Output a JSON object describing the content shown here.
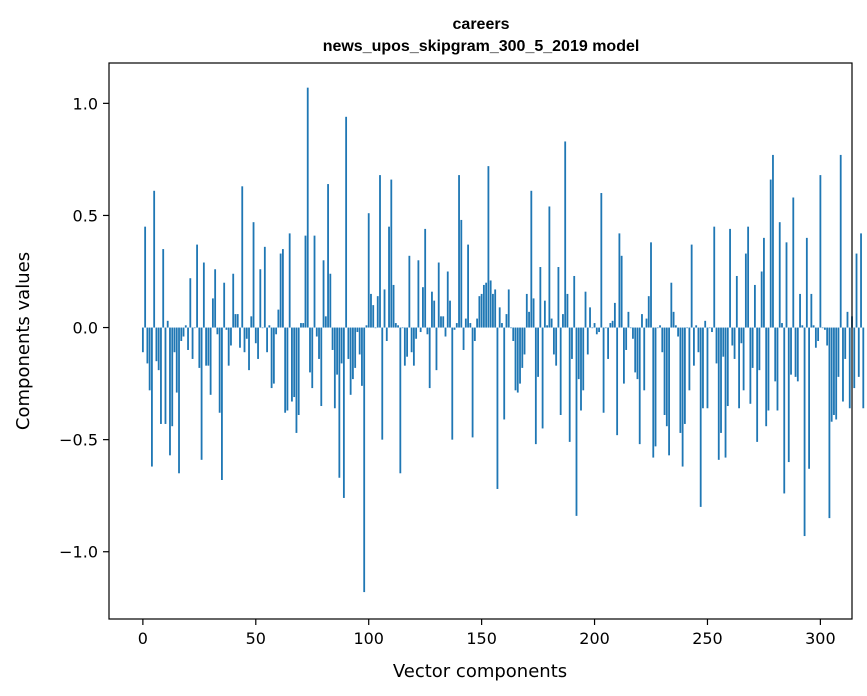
{
  "chart_data": {
    "type": "bar",
    "title": "careers",
    "subtitle": "news_upos_skipgram_300_5_2019 model",
    "xlabel": "Vector components",
    "ylabel": "Components values",
    "xlim": [
      -15,
      314
    ],
    "ylim": [
      -1.3,
      1.18
    ],
    "x_ticks": [
      0,
      50,
      100,
      150,
      200,
      250,
      300
    ],
    "x_tick_labels": [
      "0",
      "50",
      "100",
      "150",
      "200",
      "250",
      "300"
    ],
    "y_ticks": [
      1.0,
      0.5,
      0.0,
      -0.5,
      -1.0
    ],
    "y_tick_labels": [
      "1.0",
      "0.5",
      "0.0",
      "−0.5",
      "−1.0"
    ],
    "bar_color": "#1f77b4",
    "values": [
      -0.11,
      0.45,
      -0.16,
      -0.28,
      -0.62,
      0.61,
      -0.15,
      -0.19,
      -0.43,
      0.35,
      -0.43,
      0.03,
      -0.57,
      -0.44,
      -0.11,
      -0.29,
      -0.65,
      -0.06,
      -0.04,
      0.01,
      -0.1,
      0.22,
      -0.14,
      0.0,
      0.37,
      -0.18,
      -0.59,
      0.29,
      -0.17,
      -0.17,
      -0.3,
      0.13,
      0.26,
      -0.03,
      -0.38,
      -0.68,
      0.2,
      -0.01,
      -0.17,
      -0.08,
      0.24,
      0.06,
      0.06,
      -0.09,
      0.63,
      -0.11,
      -0.05,
      -0.19,
      0.05,
      0.47,
      -0.07,
      -0.14,
      0.26,
      0.0,
      0.36,
      -0.11,
      0.01,
      -0.27,
      -0.25,
      -0.03,
      0.08,
      0.33,
      0.35,
      -0.38,
      -0.37,
      0.42,
      -0.33,
      -0.31,
      -0.47,
      -0.39,
      0.02,
      0.02,
      0.41,
      1.07,
      -0.2,
      -0.27,
      0.41,
      -0.04,
      -0.14,
      -0.35,
      0.3,
      0.05,
      0.64,
      0.24,
      -0.1,
      -0.36,
      -0.21,
      -0.67,
      -0.16,
      -0.76,
      0.94,
      -0.14,
      -0.3,
      -0.23,
      -0.18,
      -0.02,
      -0.12,
      -0.26,
      -1.18,
      0.01,
      0.51,
      0.15,
      0.1,
      0.0,
      0.14,
      0.68,
      -0.5,
      0.17,
      -0.06,
      0.45,
      0.66,
      0.19,
      0.02,
      0.01,
      -0.65,
      0.0,
      -0.17,
      -0.13,
      0.32,
      -0.11,
      -0.17,
      -0.05,
      0.3,
      -0.02,
      0.18,
      0.44,
      -0.03,
      -0.27,
      0.16,
      0.12,
      -0.19,
      0.29,
      0.05,
      0.05,
      -0.04,
      0.25,
      0.12,
      -0.5,
      -0.01,
      0.02,
      0.68,
      0.48,
      -0.1,
      0.04,
      0.37,
      0.02,
      -0.49,
      -0.06,
      0.04,
      0.14,
      0.15,
      0.19,
      0.2,
      0.72,
      0.21,
      0.15,
      0.17,
      -0.72,
      0.09,
      0.02,
      -0.41,
      0.06,
      0.17,
      0.0,
      -0.06,
      -0.28,
      -0.29,
      -0.25,
      -0.18,
      -0.12,
      0.15,
      0.07,
      0.61,
      0.13,
      -0.52,
      -0.22,
      0.27,
      -0.45,
      0.12,
      0.01,
      0.54,
      0.04,
      -0.12,
      -0.17,
      0.27,
      -0.39,
      0.06,
      0.83,
      0.15,
      -0.51,
      -0.14,
      0.23,
      -0.84,
      -0.23,
      -0.37,
      -0.28,
      0.16,
      -0.12,
      0.09,
      0.0,
      0.02,
      -0.03,
      -0.02,
      0.6,
      -0.38,
      0.0,
      -0.14,
      0.02,
      0.03,
      0.11,
      -0.48,
      0.42,
      0.32,
      -0.25,
      -0.1,
      0.07,
      0.0,
      -0.05,
      -0.2,
      -0.23,
      -0.52,
      0.06,
      -0.28,
      0.04,
      0.14,
      0.38,
      -0.58,
      -0.53,
      0.0,
      0.01,
      -0.11,
      -0.39,
      -0.44,
      -0.57,
      0.2,
      0.07,
      0.01,
      -0.04,
      -0.47,
      -0.62,
      -0.43,
      0.0,
      -0.28,
      0.37,
      -0.17,
      0.01,
      -0.11,
      -0.8,
      -0.36,
      0.03,
      -0.36,
      0.0,
      -0.02,
      0.45,
      -0.16,
      -0.59,
      -0.47,
      -0.13,
      -0.58,
      -0.35,
      0.44,
      -0.08,
      -0.14,
      0.23,
      -0.36,
      -0.07,
      -0.28,
      0.33,
      0.45,
      -0.34,
      -0.18,
      0.19,
      -0.51,
      -0.19,
      0.25,
      0.4,
      -0.44,
      -0.37,
      0.66,
      0.77,
      -0.24,
      -0.37,
      0.47,
      0.02,
      -0.74,
      0.38,
      -0.6,
      -0.21,
      0.58,
      -0.22,
      -0.24,
      0.15,
      0.01,
      -0.93,
      0.4,
      -0.63,
      0.15,
      0.01,
      -0.09,
      -0.06,
      0.68,
      0.0,
      -0.01,
      -0.08,
      -0.85,
      -0.42,
      -0.39,
      -0.41,
      -0.22,
      0.77,
      -0.33,
      -0.14,
      0.07,
      -0.36,
      0.05,
      -0.27,
      0.33,
      -0.22,
      0.42,
      -0.36
    ]
  }
}
